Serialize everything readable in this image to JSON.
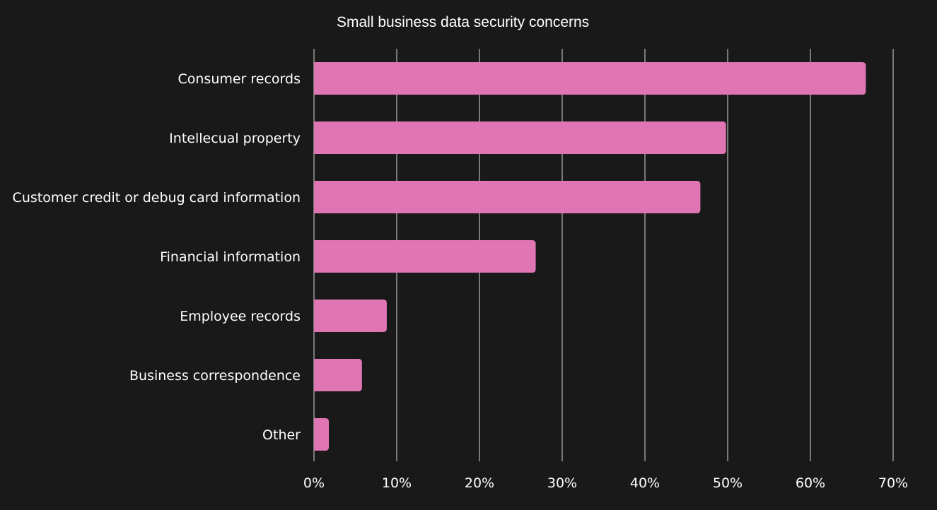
{
  "chart_data": {
    "type": "bar",
    "orientation": "horizontal",
    "title": "Small business data security concerns",
    "categories": [
      "Consumer records",
      "Intellecual property",
      "Customer credit or debug card information",
      "Financial information",
      "Employee records",
      "Business correspondence",
      "Other"
    ],
    "values": [
      66.7,
      49.8,
      46.7,
      26.8,
      8.8,
      5.8,
      1.8
    ],
    "xlim": [
      0,
      70
    ],
    "x_ticks": [
      0,
      10,
      20,
      30,
      40,
      50,
      60,
      70
    ],
    "x_tick_labels": [
      "0%",
      "10%",
      "20%",
      "30%",
      "40%",
      "50%",
      "60%",
      "70%"
    ],
    "grid": true,
    "legend": "none"
  },
  "colors": {
    "background": "#191919",
    "bar": "#e075b4",
    "grid": "#d9d9d9",
    "text": "#ffffff"
  }
}
